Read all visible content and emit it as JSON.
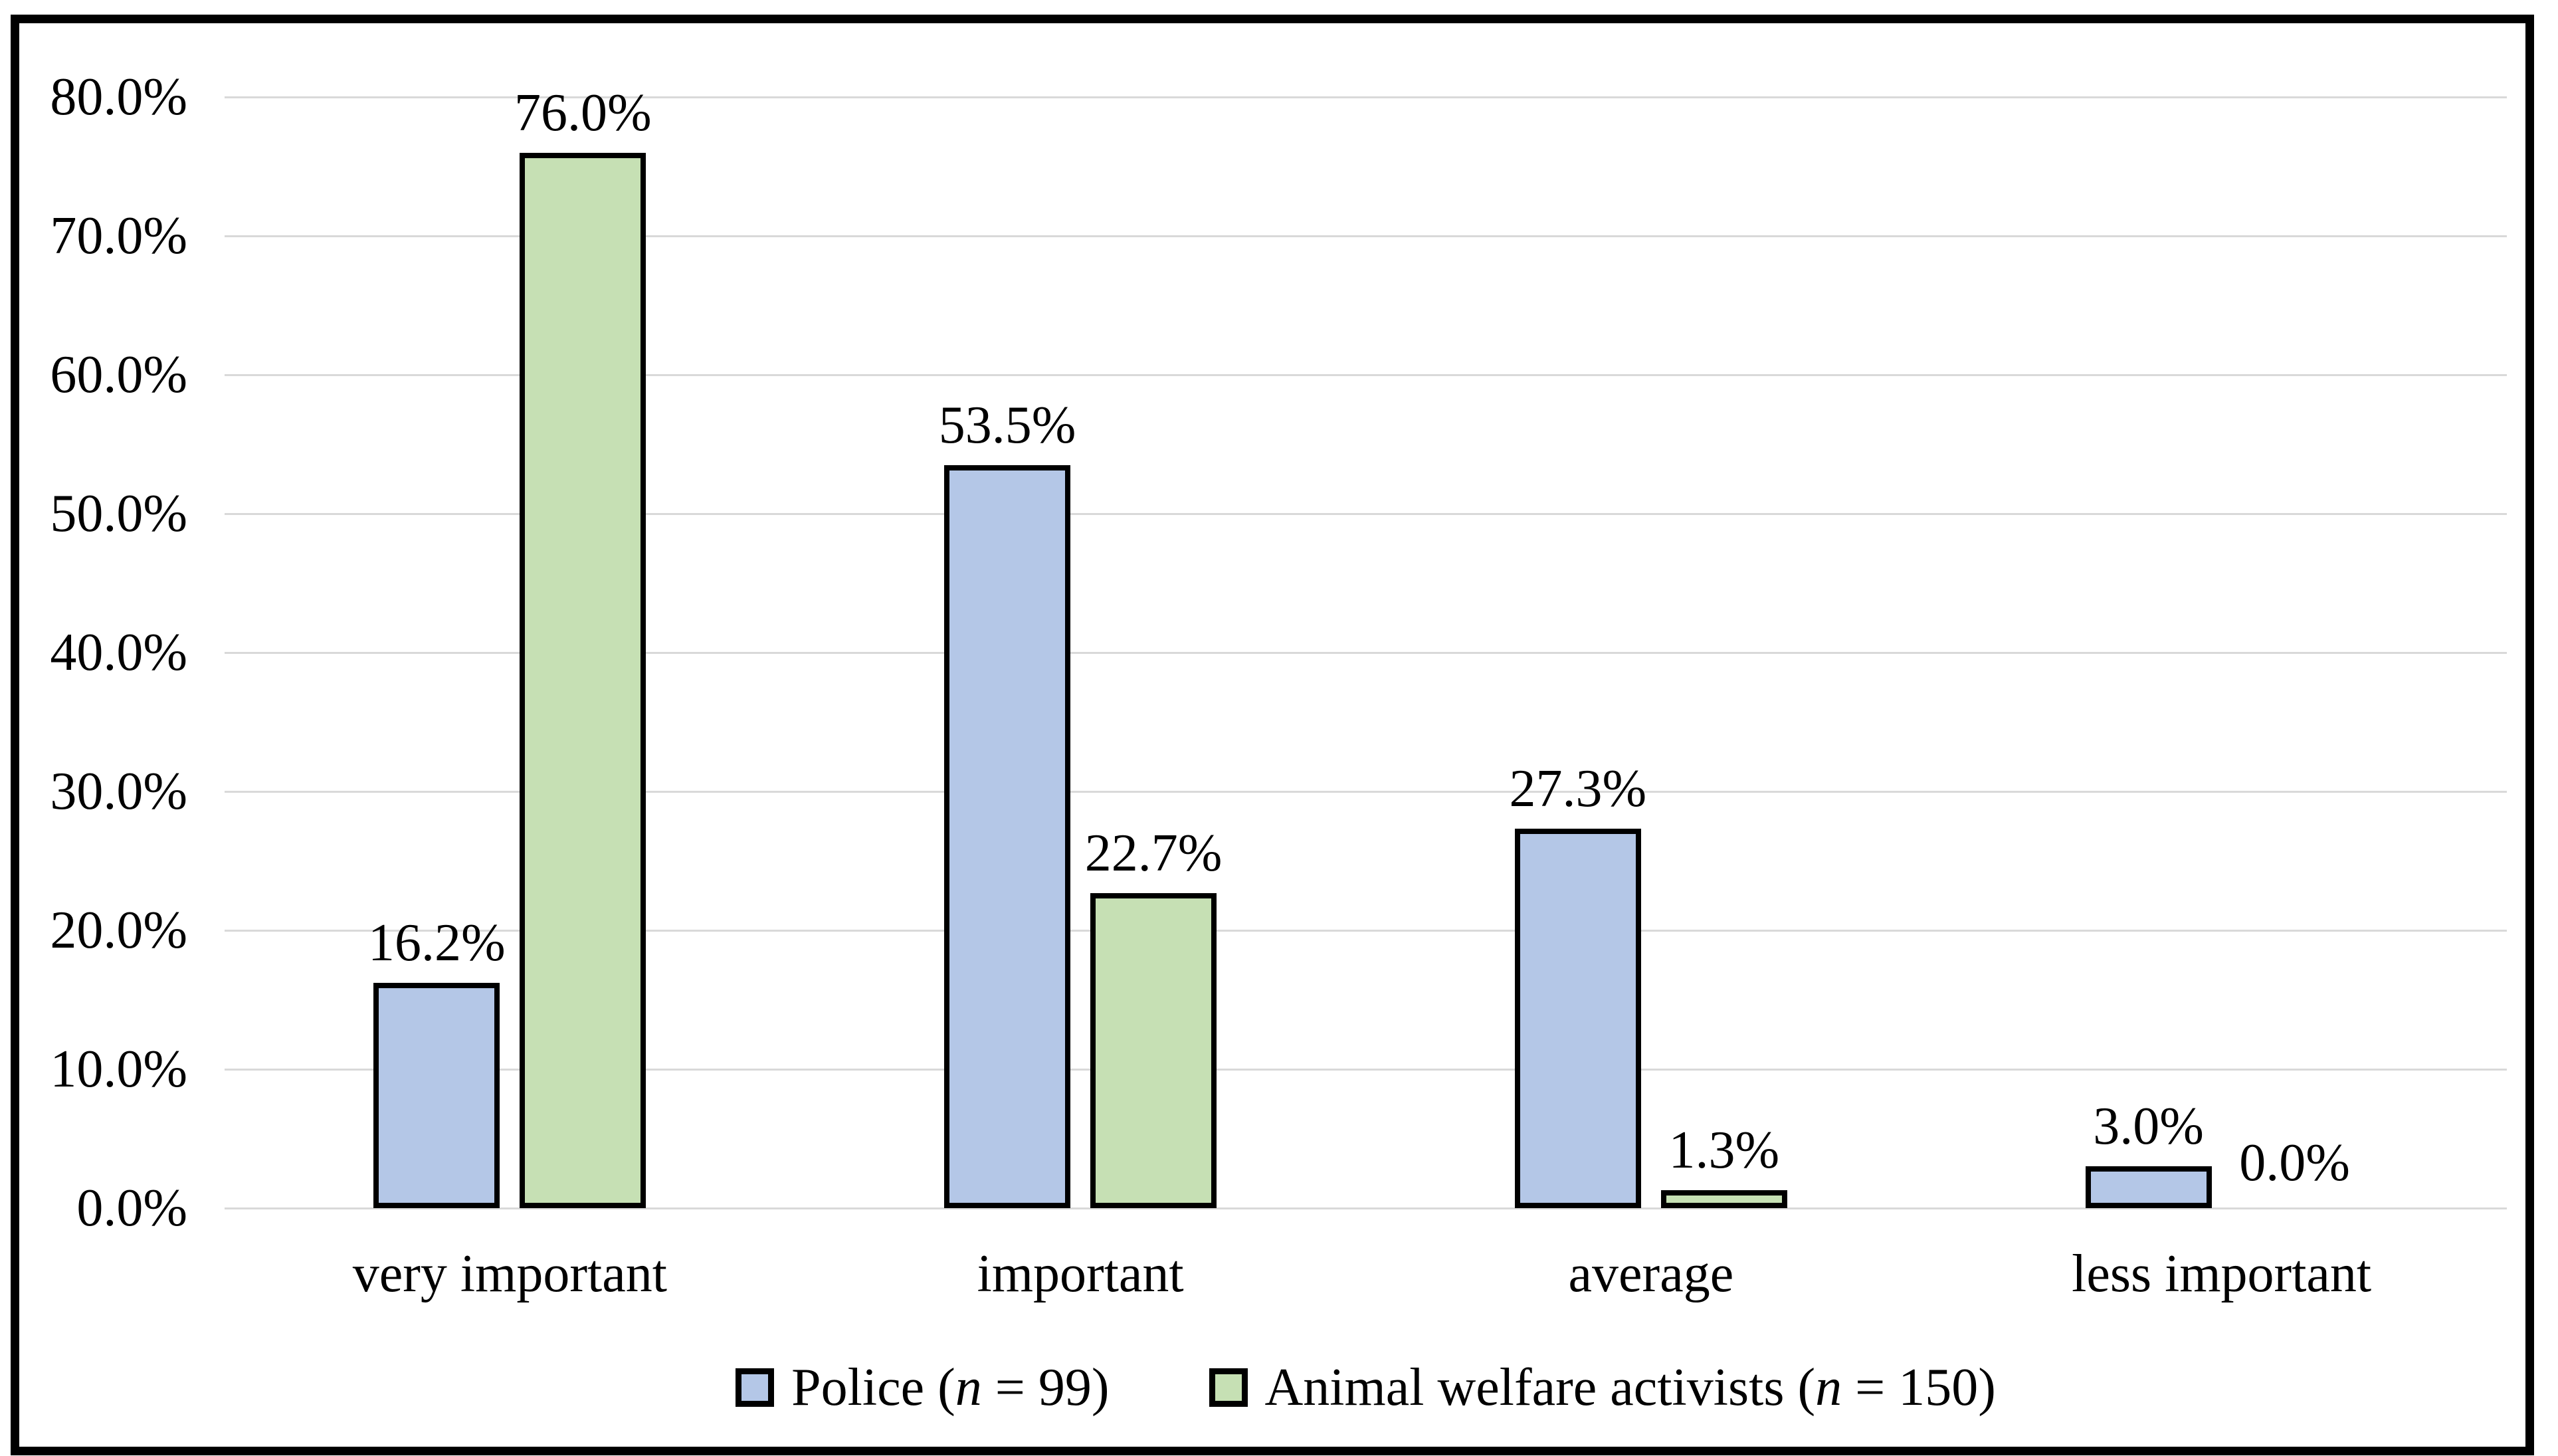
{
  "chart_data": {
    "type": "bar",
    "categories": [
      "very important",
      "important",
      "average",
      "less important"
    ],
    "series": [
      {
        "name_prefix": "Police (",
        "name_var": "n",
        "name_suffix": " = 99)",
        "color": "#B4C7E7",
        "values": [
          16.2,
          53.5,
          27.3,
          3.0
        ],
        "value_labels": [
          "16.2%",
          "53.5%",
          "27.3%",
          "3.0%"
        ]
      },
      {
        "name_prefix": "Animal welfare activists (",
        "name_var": "n",
        "name_suffix": " = 150)",
        "color": "#C6E0B4",
        "values": [
          76.0,
          22.7,
          1.3,
          0.0
        ],
        "value_labels": [
          "76.0%",
          "22.7%",
          "1.3%",
          "0.0%"
        ]
      }
    ],
    "title": "",
    "xlabel": "",
    "ylabel": "",
    "ylim": [
      0,
      80
    ],
    "ytick_step": 10,
    "ytick_labels": [
      "0.0%",
      "10.0%",
      "20.0%",
      "30.0%",
      "40.0%",
      "50.0%",
      "60.0%",
      "70.0%",
      "80.0%"
    ],
    "grid": true,
    "gridline_color": "#D9D9D9",
    "bar_border_color": "#000000",
    "legend_position": "bottom"
  }
}
